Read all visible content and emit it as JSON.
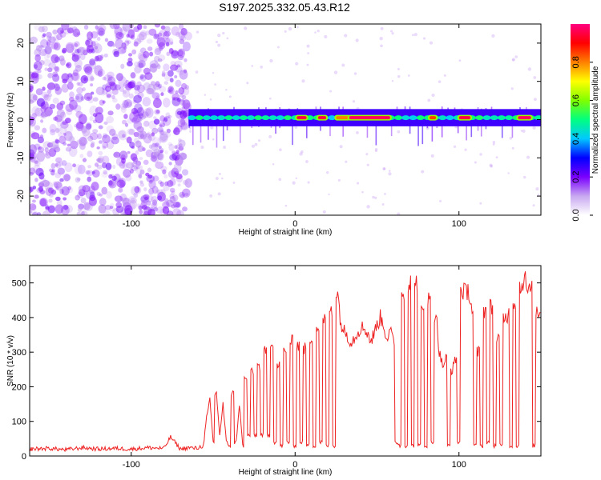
{
  "title": "S197.2025.332.05.43.R12",
  "chart_data": [
    {
      "type": "heatmap",
      "name": "spectrogram",
      "xlabel": "Height of straight line (km)",
      "ylabel": "Frequency (Hz)",
      "xlim": [
        -162,
        150
      ],
      "ylim": [
        -25,
        25
      ],
      "xticks": [
        -100,
        0,
        100
      ],
      "yticks": [
        -20,
        -10,
        0,
        10,
        20
      ],
      "noise_region_x": [
        -162,
        -65
      ],
      "signal_start_x": -65,
      "signal_end_x": 150,
      "signal_center_freq": 0.5,
      "high_amplitude_segments": [
        {
          "x": [
            1,
            7
          ],
          "value": 0.95
        },
        {
          "x": [
            14,
            19
          ],
          "value": 0.95
        },
        {
          "x": [
            25,
            33
          ],
          "value": 0.8
        },
        {
          "x": [
            33,
            58
          ],
          "value": 0.97
        },
        {
          "x": [
            82,
            86
          ],
          "value": 0.85
        },
        {
          "x": [
            100,
            107
          ],
          "value": 0.95
        },
        {
          "x": [
            136,
            144
          ],
          "value": 0.97
        }
      ],
      "colorbar": {
        "label": "Normalized spectral amplitude",
        "min": 0.0,
        "max": 1.0,
        "ticks": [
          0.0,
          0.2,
          0.4,
          0.6,
          0.8
        ],
        "tick_labels": [
          "0.0",
          "0.2",
          "0.4",
          "0.6",
          "0.8"
        ],
        "colors": [
          "#ffffff",
          "#c8a8f0",
          "#7a00ff",
          "#0000ff",
          "#00c8ff",
          "#00ff80",
          "#80ff00",
          "#ffff00",
          "#ff8000",
          "#ff0000",
          "#ff0080"
        ]
      }
    },
    {
      "type": "line",
      "name": "snr",
      "xlabel": "Height of straight line (km)",
      "ylabel": "SNR (10 * v/v)",
      "xlim": [
        -162,
        150
      ],
      "ylim": [
        0,
        550
      ],
      "xticks": [
        -100,
        0,
        100
      ],
      "yticks": [
        0,
        100,
        200,
        300,
        400,
        500
      ],
      "color": "#ee2222",
      "series": [
        {
          "name": "SNR",
          "x": [
            -162,
            -150,
            -140,
            -130,
            -120,
            -110,
            -100,
            -90,
            -80,
            -76,
            -70,
            -65,
            -60,
            -56,
            -54,
            -52,
            -50,
            -48,
            -46,
            -44,
            -42,
            -40,
            -38,
            -36,
            -34,
            -32,
            -30,
            -28,
            -26,
            -24,
            -22,
            -20,
            -18,
            -16,
            -14,
            -12,
            -10,
            -8,
            -6,
            -4,
            -2,
            0,
            2,
            4,
            6,
            8,
            10,
            12,
            14,
            16,
            18,
            20,
            22,
            24,
            26,
            28,
            30,
            32,
            34,
            36,
            38,
            40,
            42,
            44,
            46,
            48,
            50,
            52,
            54,
            56,
            58,
            60,
            62,
            64,
            66,
            68,
            70,
            72,
            74,
            76,
            78,
            80,
            82,
            84,
            86,
            88,
            90,
            92,
            94,
            96,
            98,
            100,
            102,
            104,
            106,
            108,
            110,
            112,
            114,
            116,
            118,
            120,
            122,
            124,
            126,
            128,
            130,
            132,
            134,
            136,
            138,
            140,
            142,
            144,
            146,
            148,
            150
          ],
          "y": [
            20,
            22,
            18,
            24,
            20,
            22,
            20,
            24,
            22,
            55,
            20,
            24,
            22,
            30,
            110,
            160,
            40,
            180,
            60,
            150,
            40,
            30,
            180,
            40,
            150,
            30,
            220,
            60,
            240,
            60,
            260,
            60,
            300,
            60,
            330,
            40,
            260,
            30,
            300,
            40,
            330,
            30,
            320,
            40,
            310,
            30,
            340,
            30,
            370,
            40,
            390,
            30,
            420,
            30,
            470,
            380,
            360,
            350,
            330,
            340,
            360,
            370,
            370,
            360,
            330,
            350,
            380,
            400,
            380,
            340,
            360,
            330,
            40,
            30,
            470,
            30,
            500,
            30,
            500,
            30,
            420,
            30,
            450,
            40,
            410,
            300,
            260,
            280,
            30,
            250,
            280,
            40,
            480,
            470,
            480,
            420,
            30,
            300,
            30,
            420,
            40,
            430,
            30,
            340,
            30,
            400,
            410,
            30,
            440,
            30,
            490,
            520,
            470,
            480,
            30,
            420,
            410
          ]
        }
      ]
    }
  ]
}
